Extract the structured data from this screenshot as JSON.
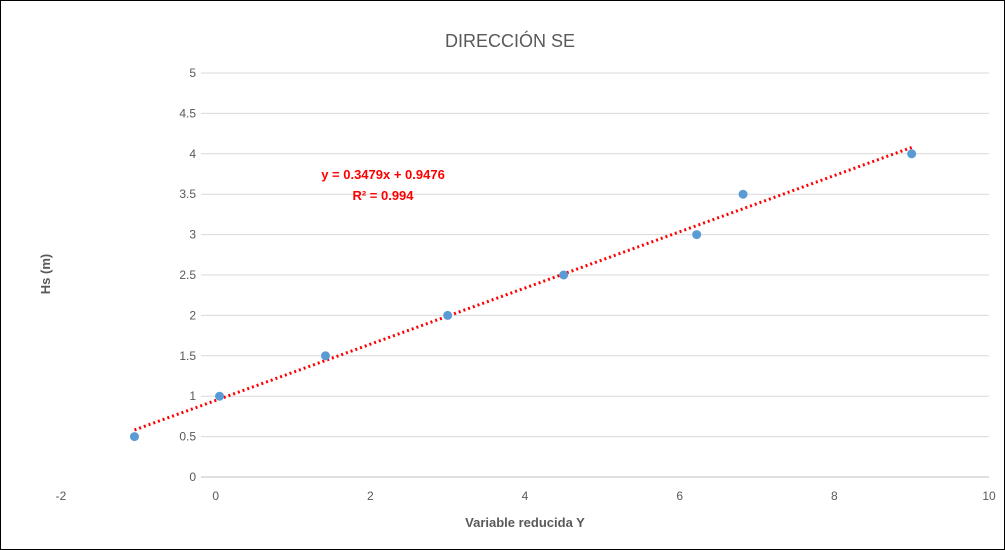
{
  "chart_data": {
    "type": "scatter",
    "title": "DIRECCIÓN SE",
    "xlabel": "Variable reducida Y",
    "ylabel": "Hs (m)",
    "xlim": [
      -2,
      10
    ],
    "ylim": [
      0,
      5
    ],
    "x_ticks": [
      -2,
      0,
      2,
      4,
      6,
      8,
      10
    ],
    "y_ticks": [
      0,
      0.5,
      1,
      1.5,
      2,
      2.5,
      3,
      3.5,
      4,
      4.5,
      5
    ],
    "grid": true,
    "series": [
      {
        "color": "#5b9bd5",
        "x": [
          -1.05,
          0.05,
          1.42,
          3.0,
          4.5,
          6.22,
          6.82,
          9.0
        ],
        "y": [
          0.5,
          1.0,
          1.5,
          2.0,
          2.5,
          3.0,
          3.5,
          4.0
        ]
      }
    ],
    "trendline": {
      "type": "linear",
      "slope": 0.3479,
      "intercept": 0.9476,
      "x_range": [
        -1.05,
        9.0
      ],
      "color": "#ff0000",
      "style": "dotted",
      "equation_label": "y = 0.3479x + 0.9476",
      "r2_label": "R² = 0.994"
    }
  }
}
